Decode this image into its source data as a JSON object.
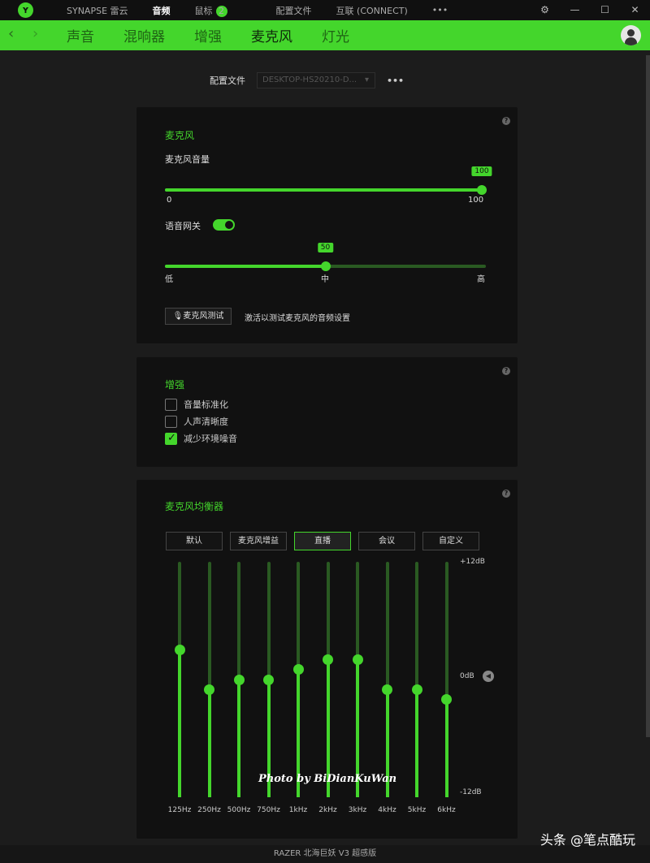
{
  "topbar": {
    "tabs": [
      "SYNAPSE 雷云",
      "音频",
      "鼠标",
      "配置文件",
      "互联 (CONNECT)",
      "•••"
    ],
    "active": "音频",
    "mouse_badge": "2"
  },
  "subnav": {
    "tabs": [
      "声音",
      "混响器",
      "增强",
      "麦克风",
      "灯光"
    ],
    "active": "麦克风"
  },
  "profile": {
    "label": "配置文件",
    "value": "DESKTOP-HS20210-D...",
    "more": "•••"
  },
  "mic": {
    "title": "麦克风",
    "volume_label": "麦克风音量",
    "volume": 100,
    "min": "0",
    "max": "100",
    "gate_label": "语音网关",
    "gate_on": true,
    "gate_value": 50,
    "low": "低",
    "mid": "中",
    "high": "高",
    "test_button": "麦克风测试",
    "test_hint": "激活以测试麦克风的音频设置"
  },
  "enhance": {
    "title": "增强",
    "items": [
      {
        "label": "音量标准化",
        "checked": false
      },
      {
        "label": "人声清晰度",
        "checked": false
      },
      {
        "label": "减少环境噪音",
        "checked": true
      }
    ]
  },
  "eq": {
    "title": "麦克风均衡器",
    "presets": [
      "默认",
      "麦克风增益",
      "直播",
      "会议",
      "自定义"
    ],
    "active_preset": "直播",
    "top": "+12dB",
    "mid": "0dB",
    "bottom": "-12dB",
    "bands": [
      "125Hz",
      "250Hz",
      "500Hz",
      "750Hz",
      "1kHz",
      "2kHz",
      "3kHz",
      "4kHz",
      "5kHz",
      "6kHz"
    ],
    "values_db": [
      3,
      -1,
      0,
      0,
      1,
      2,
      2,
      -1,
      -1,
      -2
    ],
    "range_db": [
      -12,
      12
    ]
  },
  "footer": "RAZER 北海巨妖 V3 超感版",
  "watermark": "头条 @笔点酷玩",
  "photo_credit": "Photo by BiDianKuWan",
  "colors": {
    "accent": "#44d62c"
  }
}
